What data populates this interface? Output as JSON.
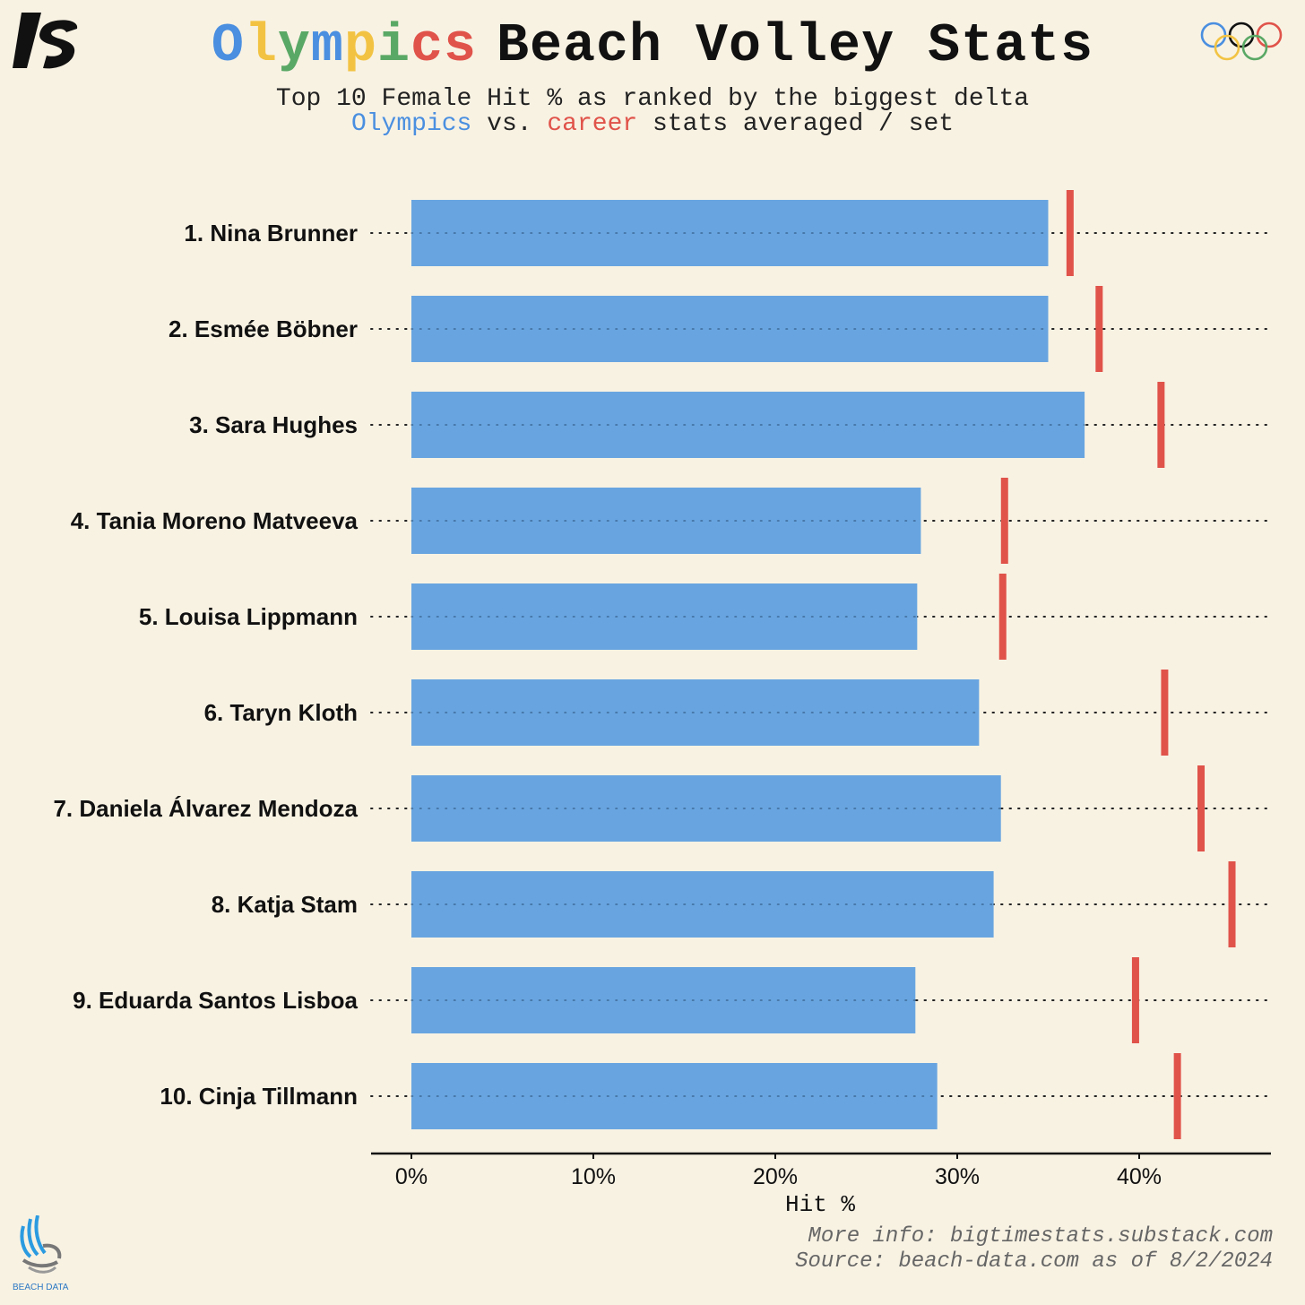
{
  "title": {
    "first_word": "Olympics",
    "first_word_colors": [
      "#4a8fe0",
      "#f2c343",
      "#5aa865",
      "#4a8fe0",
      "#f2c343",
      "#5aa865",
      "#e0534a",
      "#e0534a"
    ],
    "rest": "Beach Volley Stats"
  },
  "subtitle": {
    "line1": "Top 10 Female Hit % as ranked by the biggest delta",
    "olympics": "Olympics",
    "vs": " vs. ",
    "career": "career",
    "tail": " stats averaged / set"
  },
  "footer": {
    "line1": "More info: bigtimestats.substack.com",
    "line2": "Source: beach-data.com as of 8/2/2024"
  },
  "brand": {
    "beach_data": "BEACH DATA"
  },
  "colors": {
    "olympics": "#68a5e0",
    "career": "#e0534a",
    "background": "#f8f2e3"
  },
  "icons": [
    "bigtimestats-logo-icon",
    "olympic-rings-icon",
    "beach-data-logo-icon"
  ],
  "chart_data": {
    "type": "bar",
    "orientation": "horizontal",
    "xlabel": "Hit %",
    "xlim": [
      0,
      47
    ],
    "ticks": [
      0,
      10,
      20,
      30,
      40
    ],
    "tick_labels": [
      "0%",
      "10%",
      "20%",
      "30%",
      "40%"
    ],
    "categories": [
      "1. Nina Brunner",
      "2. Esmée Böbner",
      "3. Sara Hughes",
      "4. Tania Moreno Matveeva",
      "5. Louisa Lippmann",
      "6. Taryn Kloth",
      "7. Daniela Álvarez Mendoza",
      "8. Katja Stam",
      "9. Eduarda Santos Lisboa",
      "10. Cinja Tillmann"
    ],
    "series": [
      {
        "name": "Olympics",
        "values": [
          35.0,
          35.0,
          37.0,
          28.0,
          27.8,
          31.2,
          32.4,
          32.0,
          27.7,
          28.9
        ]
      },
      {
        "name": "career",
        "values": [
          36.2,
          37.8,
          41.2,
          32.6,
          32.5,
          41.4,
          43.4,
          45.1,
          39.8,
          42.1
        ]
      }
    ],
    "grid": "dotted row guides",
    "legend": "none (encoded in subtitle)"
  }
}
